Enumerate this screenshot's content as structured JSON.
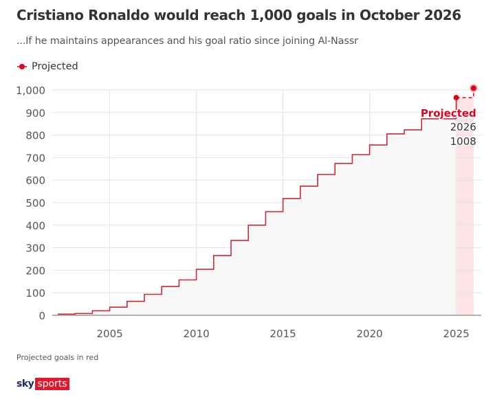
{
  "header": {
    "title": "Cristiano Ronaldo would reach 1,000 goals in October 2026",
    "subtitle": "...If he maintains appearances and his goal ratio since joining Al-Nassr"
  },
  "legend": {
    "label": "Projected",
    "color": "#e3001b"
  },
  "footer": {
    "note": "Projected goals in red"
  },
  "logo": {
    "sky": "sky",
    "sports": "sports"
  },
  "colors": {
    "line": "#c8283a",
    "projected": "#e3001b",
    "band": "#fbe3e6",
    "fill": "#f7f7f7",
    "grid": "#e3e3e3"
  },
  "chart_data": {
    "type": "line",
    "step": true,
    "xlim": [
      2002,
      2026
    ],
    "ylim": [
      0,
      1000
    ],
    "x_ticks": [
      2005,
      2010,
      2015,
      2020,
      2025
    ],
    "y_ticks": [
      0,
      100,
      200,
      300,
      400,
      500,
      600,
      700,
      800,
      900,
      1000
    ],
    "y_tick_labels": [
      "0",
      "100",
      "200",
      "300",
      "400",
      "500",
      "600",
      "700",
      "800",
      "900",
      "1,000"
    ],
    "grid": true,
    "series": [
      {
        "x": [
          2002,
          2003,
          2004,
          2005,
          2006,
          2007,
          2008,
          2009,
          2010,
          2011,
          2012,
          2013,
          2014,
          2015,
          2016,
          2017,
          2018,
          2019,
          2020,
          2021,
          2022,
          2023,
          2024
        ],
        "y": [
          5,
          8,
          20,
          36,
          62,
          93,
          128,
          157,
          204,
          265,
          332,
          400,
          460,
          518,
          573,
          625,
          674,
          713,
          756,
          805,
          823,
          872,
          872
        ]
      },
      {
        "name": "Projected",
        "x": [
          2025,
          2026
        ],
        "y": [
          966,
          1008
        ]
      }
    ],
    "annotation": {
      "label": "Projected",
      "year": "2026",
      "value": "1008"
    }
  }
}
